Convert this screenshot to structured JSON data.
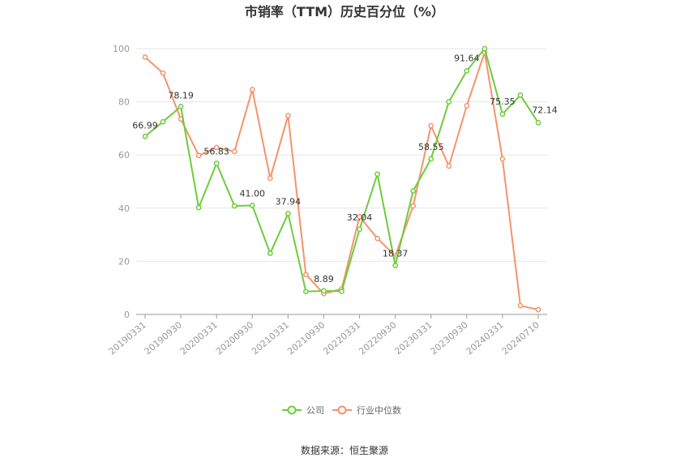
{
  "chart_data": {
    "type": "line",
    "title": "市销率（TTM）历史百分位（%）",
    "source": "数据来源：恒生聚源",
    "ylim": [
      0,
      100
    ],
    "yticks": [
      0,
      20,
      40,
      60,
      80,
      100
    ],
    "grid": true,
    "legend_position": "bottom-center",
    "x": [
      "20190331",
      "20190630",
      "20190930",
      "20191231",
      "20200331",
      "20200630",
      "20200930",
      "20201231",
      "20210331",
      "20210630",
      "20210930",
      "20211231",
      "20220331",
      "20220630",
      "20220930",
      "20221231",
      "20230331",
      "20230630",
      "20230930",
      "20231231",
      "20240331",
      "20240630",
      "20240710"
    ],
    "xtick_labels": [
      "20190331",
      "20190930",
      "20200331",
      "20200930",
      "20210331",
      "20210930",
      "20220331",
      "20220930",
      "20230331",
      "20230930",
      "20240331",
      "20240710"
    ],
    "series": [
      {
        "name": "公司",
        "color": "#6dcc3c",
        "values": [
          66.99,
          72.5,
          78.19,
          40.2,
          56.83,
          40.8,
          41.0,
          23.0,
          37.94,
          8.6,
          8.89,
          8.7,
          32.04,
          52.8,
          18.37,
          46.5,
          58.55,
          80.0,
          91.64,
          100.0,
          75.35,
          82.5,
          72.14
        ],
        "labels": [
          "66.99",
          null,
          "78.19",
          null,
          "56.83",
          null,
          "41.00",
          null,
          "37.94",
          null,
          "8.89",
          null,
          "32.04",
          null,
          "18.37",
          null,
          "58.55",
          null,
          "91.64",
          null,
          "75.35",
          null,
          "72.14"
        ]
      },
      {
        "name": "行业中位数",
        "color": "#f5936b",
        "values": [
          96.8,
          90.8,
          73.5,
          59.8,
          62.8,
          61.3,
          84.6,
          51.2,
          74.8,
          15.0,
          7.8,
          9.6,
          36.8,
          28.6,
          22.0,
          40.8,
          71.0,
          55.8,
          78.5,
          98.6,
          58.5,
          3.3,
          1.8
        ]
      }
    ]
  }
}
